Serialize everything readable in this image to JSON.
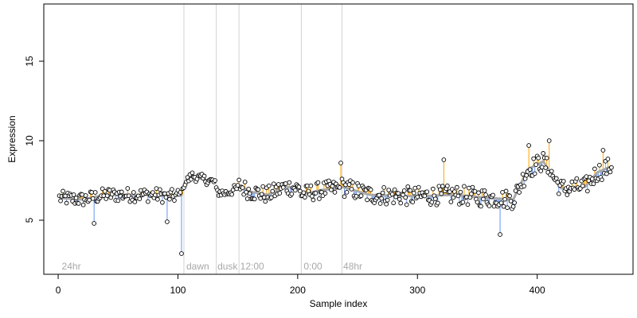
{
  "chart_data": {
    "type": "scatter",
    "title": "",
    "xlabel": "Sample index",
    "ylabel": "Expression",
    "xlim": [
      -12,
      480
    ],
    "ylim": [
      1.6,
      18.6
    ],
    "x_ticks": [
      0,
      100,
      200,
      300,
      400
    ],
    "y_ticks": [
      5,
      10,
      15
    ],
    "grid": false,
    "legend": "none",
    "colors": {
      "above_fit": "#ffa500",
      "below_fit": "#6495ed",
      "fit_line": "#a9a9a9",
      "points_edge": "#000000",
      "divider": "#d3d3d3",
      "annotation": "#a8a8a8"
    },
    "annotations": [
      {
        "label": "24hr",
        "x": 3
      },
      {
        "label": "dawn",
        "x": 107
      },
      {
        "label": "dusk",
        "x": 133
      },
      {
        "label": "12:00",
        "x": 152
      },
      {
        "label": "0:00",
        "x": 205
      },
      {
        "label": "48hr",
        "x": 238
      }
    ],
    "dividers": [
      105,
      132,
      151,
      203,
      237
    ],
    "segments": [
      {
        "x_start": 1,
        "x_end": 104,
        "baseline": [
          [
            1,
            6.4
          ],
          [
            20,
            6.3
          ],
          [
            40,
            6.6
          ],
          [
            60,
            6.6
          ],
          [
            80,
            6.6
          ],
          [
            95,
            6.5
          ],
          [
            104,
            6.6
          ]
        ],
        "noise": 0.45
      },
      {
        "x_start": 105,
        "x_end": 131,
        "baseline": [
          [
            105,
            7.3
          ],
          [
            112,
            7.8
          ],
          [
            120,
            7.6
          ],
          [
            131,
            7.4
          ]
        ],
        "noise": 0.3
      },
      {
        "x_start": 132,
        "x_end": 150,
        "baseline": [
          [
            132,
            6.8
          ],
          [
            140,
            6.7
          ],
          [
            150,
            7.0
          ]
        ],
        "noise": 0.3
      },
      {
        "x_start": 151,
        "x_end": 202,
        "baseline": [
          [
            151,
            7.2
          ],
          [
            160,
            6.8
          ],
          [
            175,
            6.6
          ],
          [
            190,
            7.1
          ],
          [
            202,
            7.0
          ]
        ],
        "noise": 0.55
      },
      {
        "x_start": 203,
        "x_end": 236,
        "baseline": [
          [
            203,
            6.6
          ],
          [
            220,
            6.9
          ],
          [
            236,
            7.0
          ]
        ],
        "noise": 0.55
      },
      {
        "x_start": 237,
        "x_end": 462,
        "baseline": [
          [
            237,
            7.1
          ],
          [
            260,
            6.6
          ],
          [
            300,
            6.5
          ],
          [
            330,
            6.6
          ],
          [
            360,
            6.4
          ],
          [
            380,
            6.3
          ],
          [
            392,
            8.2
          ],
          [
            405,
            8.7
          ],
          [
            420,
            7.0
          ],
          [
            440,
            7.1
          ],
          [
            450,
            8.0
          ],
          [
            462,
            8.4
          ]
        ],
        "noise": 0.6
      }
    ],
    "notable_points": [
      {
        "x": 103,
        "y": 2.9
      },
      {
        "x": 30,
        "y": 4.8
      },
      {
        "x": 91,
        "y": 4.9
      },
      {
        "x": 369,
        "y": 4.1
      },
      {
        "x": 410,
        "y": 10.0
      },
      {
        "x": 393,
        "y": 9.7
      },
      {
        "x": 455,
        "y": 9.4
      },
      {
        "x": 236,
        "y": 8.6
      },
      {
        "x": 322,
        "y": 8.8
      }
    ]
  }
}
